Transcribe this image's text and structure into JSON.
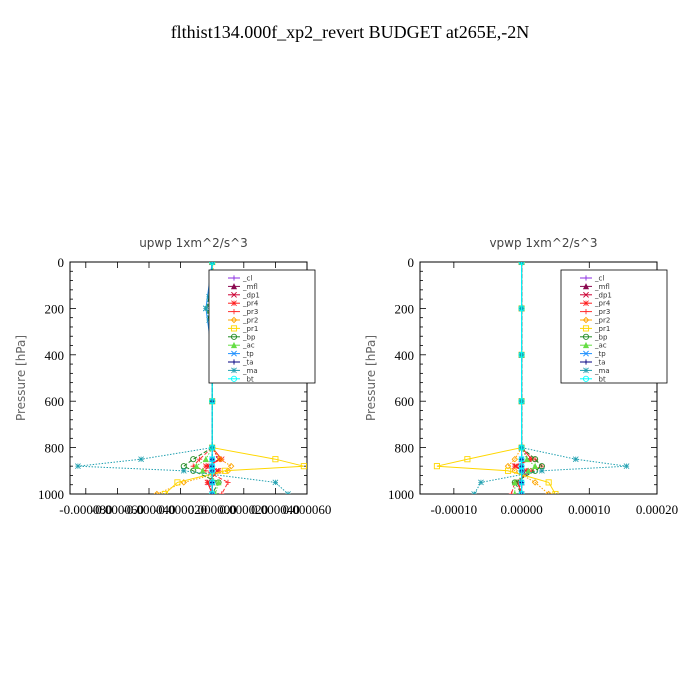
{
  "title": "flthist134.000f_xp2_revert  BUDGET at265E,-2N",
  "chart_data": [
    {
      "type": "line",
      "title": "upwp   1xm^2/s^3",
      "ylabel": "Pressure [hPa]",
      "ylim": [
        1000,
        0
      ],
      "xlim": [
        -9e-05,
        6e-05
      ],
      "yticks": [
        "0",
        "200",
        "400",
        "600",
        "800",
        "1000"
      ],
      "yticks_num": [
        0,
        200,
        400,
        600,
        800,
        1000
      ],
      "xticks_num": [
        -8e-05,
        -6e-05,
        -4e-05,
        -2e-05,
        0,
        2e-05,
        4e-05,
        6e-05
      ],
      "xticks": [
        "-0.000080",
        "-0.000060",
        "-0.000040",
        "-0.000020",
        "0.000000",
        "0.000020",
        "0.000040",
        "0.000060"
      ],
      "legend_position": "top-right",
      "series": [
        {
          "name": "_cl",
          "color": "#8a2be2",
          "y": [
            0,
            200,
            400,
            600,
            800,
            850,
            880,
            900,
            950,
            1000
          ],
          "values": [
            0,
            0,
            0,
            0,
            0,
            0,
            0,
            0,
            0,
            0
          ]
        },
        {
          "name": "_mfl",
          "color": "#8b0a50",
          "y": [
            0,
            200,
            400,
            600,
            800,
            850,
            880,
            900,
            950,
            1000
          ],
          "values": [
            0,
            0,
            0,
            0,
            0,
            0,
            0,
            0,
            0,
            0
          ]
        },
        {
          "name": "_dp1",
          "color": "#cc0033",
          "y": [
            0,
            200,
            400,
            600,
            800,
            850,
            880,
            900,
            950,
            1000
          ],
          "values": [
            0,
            0,
            0,
            0,
            0,
            4e-06,
            -2e-06,
            3e-06,
            -2e-06,
            0
          ]
        },
        {
          "name": "_pr4",
          "color": "#ff2020",
          "y": [
            0,
            200,
            400,
            600,
            800,
            850,
            880,
            900,
            950,
            1000
          ],
          "values": [
            0,
            0,
            0,
            0,
            0,
            6e-06,
            -4e-06,
            4e-06,
            -3e-06,
            0
          ]
        },
        {
          "name": "_pr3",
          "color": "#ff3030",
          "y": [
            0,
            200,
            400,
            600,
            800,
            850,
            880,
            900,
            950,
            1000
          ],
          "values": [
            0,
            0,
            0,
            0,
            0,
            -8e-06,
            -1.2e-05,
            -4e-06,
            1e-05,
            6e-06
          ]
        },
        {
          "name": "_pr2",
          "color": "#ffa500",
          "y": [
            0,
            150,
            200,
            250,
            300,
            400,
            600,
            800,
            850,
            880,
            900,
            950,
            1000
          ],
          "values": [
            0,
            3e-06,
            5e-06,
            2e-06,
            0,
            0,
            0,
            0,
            5e-06,
            1.2e-05,
            1e-05,
            -1.8e-05,
            -3.5e-05
          ]
        },
        {
          "name": "_pr1",
          "color": "#ffd700",
          "y": [
            0,
            200,
            400,
            600,
            800,
            850,
            880,
            900,
            950,
            1000
          ],
          "values": [
            0,
            0,
            0,
            0,
            0,
            4e-05,
            5.8e-05,
            8e-06,
            -2.2e-05,
            -3e-05
          ]
        },
        {
          "name": "_bp",
          "color": "#228b22",
          "y": [
            0,
            200,
            400,
            600,
            800,
            850,
            880,
            900,
            950,
            1000
          ],
          "values": [
            0,
            -3e-06,
            0,
            0,
            0,
            -1.2e-05,
            -1.8e-05,
            -1.2e-05,
            4e-06,
            0
          ]
        },
        {
          "name": "_ac",
          "color": "#66dd44",
          "y": [
            0,
            200,
            400,
            600,
            800,
            850,
            880,
            900,
            950,
            1000
          ],
          "values": [
            0,
            0,
            0,
            0,
            0,
            -4e-06,
            -1e-05,
            -6e-06,
            4e-06,
            2e-06
          ]
        },
        {
          "name": "_tp",
          "color": "#1e90ff",
          "y": [
            0,
            200,
            400,
            600,
            800,
            850,
            880,
            900,
            950,
            1000
          ],
          "values": [
            0,
            -4e-06,
            0,
            0,
            0,
            0,
            0,
            0,
            0,
            0
          ]
        },
        {
          "name": "_ta",
          "color": "#000080",
          "y": [
            0,
            200,
            400,
            600,
            800,
            850,
            880,
            900,
            950,
            1000
          ],
          "values": [
            0,
            0,
            0,
            0,
            0,
            0,
            0,
            0,
            0,
            0
          ]
        },
        {
          "name": "_ma",
          "color": "#20a0b0",
          "y": [
            0,
            150,
            200,
            250,
            400,
            800,
            850,
            880,
            900,
            950,
            1000
          ],
          "values": [
            0,
            -2e-06,
            -4e-06,
            -2e-06,
            0,
            0,
            -4.5e-05,
            -8.5e-05,
            -1.8e-05,
            4e-05,
            4.8e-05
          ]
        },
        {
          "name": "_bt",
          "color": "#00ffff",
          "y": [
            0,
            200,
            400,
            600,
            800,
            850,
            880,
            900,
            950,
            1000
          ],
          "values": [
            0,
            0,
            0,
            0,
            0,
            0,
            0,
            0,
            0,
            0
          ]
        }
      ]
    },
    {
      "type": "line",
      "title": "vpwp   1xm^2/s^3",
      "ylabel": "Pressure [hPa]",
      "ylim": [
        1000,
        0
      ],
      "xlim": [
        -0.00015,
        0.0002
      ],
      "yticks": [
        "0",
        "200",
        "400",
        "600",
        "800",
        "1000"
      ],
      "yticks_num": [
        0,
        200,
        400,
        600,
        800,
        1000
      ],
      "xticks_num": [
        -0.0001,
        0,
        0.0001,
        0.0002
      ],
      "xticks": [
        "-0.00010",
        "0.00000",
        "0.00010",
        "0.00020"
      ],
      "legend_position": "top-right",
      "series": [
        {
          "name": "_cl",
          "color": "#8a2be2",
          "y": [
            0,
            200,
            400,
            600,
            800,
            850,
            880,
            900,
            950,
            1000
          ],
          "values": [
            0,
            0,
            0,
            0,
            0,
            0,
            0,
            0,
            0,
            0
          ]
        },
        {
          "name": "_mfl",
          "color": "#8b0a50",
          "y": [
            0,
            200,
            400,
            600,
            800,
            850,
            880,
            900,
            950,
            1000
          ],
          "values": [
            0,
            0,
            0,
            0,
            0,
            0,
            0,
            0,
            0,
            0
          ]
        },
        {
          "name": "_dp1",
          "color": "#cc0033",
          "y": [
            0,
            200,
            400,
            600,
            800,
            850,
            880,
            900,
            950,
            1000
          ],
          "values": [
            0,
            0,
            0,
            0,
            0,
            1e-05,
            -8e-06,
            6e-06,
            -4e-06,
            0
          ]
        },
        {
          "name": "_pr4",
          "color": "#ff2020",
          "y": [
            0,
            200,
            400,
            600,
            800,
            850,
            880,
            900,
            950,
            1000
          ],
          "values": [
            0,
            0,
            0,
            0,
            0,
            1.5e-05,
            -1e-05,
            1e-05,
            -6e-06,
            0
          ]
        },
        {
          "name": "_pr3",
          "color": "#ff3030",
          "y": [
            0,
            200,
            400,
            600,
            800,
            850,
            880,
            900,
            950,
            1000
          ],
          "values": [
            0,
            0,
            0,
            0,
            0,
            2e-05,
            3e-05,
            1.5e-05,
            -1e-05,
            -1.5e-05
          ]
        },
        {
          "name": "_pr2",
          "color": "#ffa500",
          "y": [
            0,
            200,
            400,
            600,
            800,
            850,
            880,
            900,
            950,
            1000
          ],
          "values": [
            0,
            0,
            0,
            0,
            0,
            -1e-05,
            -2e-05,
            -1e-05,
            2e-05,
            4e-05
          ]
        },
        {
          "name": "_pr1",
          "color": "#ffd700",
          "y": [
            0,
            200,
            400,
            600,
            800,
            850,
            880,
            900,
            950,
            1000
          ],
          "values": [
            0,
            0,
            0,
            0,
            0,
            -8e-05,
            -0.000125,
            -2e-05,
            4e-05,
            5e-05
          ]
        },
        {
          "name": "_bp",
          "color": "#228b22",
          "y": [
            0,
            200,
            400,
            600,
            800,
            850,
            880,
            900,
            950,
            1000
          ],
          "values": [
            0,
            0,
            0,
            0,
            0,
            2e-05,
            3e-05,
            2e-05,
            -1e-05,
            0
          ]
        },
        {
          "name": "_ac",
          "color": "#66dd44",
          "y": [
            0,
            200,
            400,
            600,
            800,
            850,
            880,
            900,
            950,
            1000
          ],
          "values": [
            0,
            0,
            0,
            0,
            0,
            8e-06,
            2e-05,
            1e-05,
            -1e-05,
            -1e-05
          ]
        },
        {
          "name": "_tp",
          "color": "#1e90ff",
          "y": [
            0,
            200,
            400,
            600,
            800,
            850,
            880,
            900,
            950,
            1000
          ],
          "values": [
            0,
            0,
            0,
            0,
            0,
            0,
            0,
            0,
            0,
            0
          ]
        },
        {
          "name": "_ta",
          "color": "#000080",
          "y": [
            0,
            200,
            400,
            600,
            800,
            850,
            880,
            900,
            950,
            1000
          ],
          "values": [
            0,
            0,
            0,
            0,
            0,
            0,
            0,
            0,
            0,
            0
          ]
        },
        {
          "name": "_ma",
          "color": "#20a0b0",
          "y": [
            0,
            200,
            400,
            600,
            800,
            850,
            880,
            900,
            950,
            1000
          ],
          "values": [
            0,
            0,
            0,
            0,
            0,
            8e-05,
            0.000155,
            3e-05,
            -6e-05,
            -7e-05
          ]
        },
        {
          "name": "_bt",
          "color": "#00ffff",
          "y": [
            0,
            200,
            400,
            600,
            800,
            850,
            880,
            900,
            950,
            1000
          ],
          "values": [
            0,
            0,
            0,
            0,
            0,
            0,
            0,
            0,
            0,
            0
          ]
        }
      ]
    }
  ]
}
